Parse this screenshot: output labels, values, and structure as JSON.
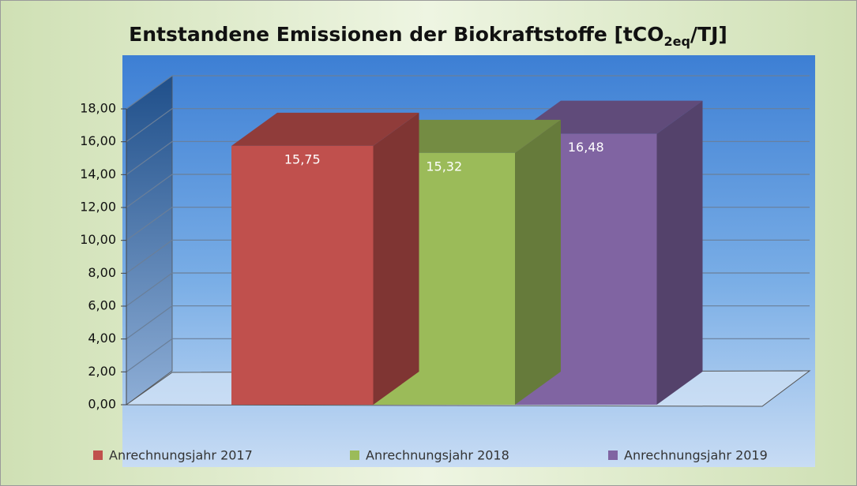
{
  "chart_data": {
    "type": "bar3d",
    "title": {
      "text": "Entstandene Emissionen der Biokraftstoffe [tCO",
      "sub": "2eq",
      "tail": "/TJ]"
    },
    "series": [
      {
        "name": "Anrechnungsjahr 2017",
        "color": "#c0504d",
        "values": [
          15.75
        ],
        "value_labels": [
          "15,75"
        ]
      },
      {
        "name": "Anrechnungsjahr 2018",
        "color": "#9bbb59",
        "values": [
          15.32
        ],
        "value_labels": [
          "15,32"
        ]
      },
      {
        "name": "Anrechnungsjahr 2019",
        "color": "#8064a2",
        "values": [
          16.48
        ],
        "value_labels": [
          "16,48"
        ]
      }
    ],
    "ylim": [
      0,
      18
    ],
    "yticks": [
      {
        "value": 0,
        "label": "0,00"
      },
      {
        "value": 2,
        "label": "2,00"
      },
      {
        "value": 4,
        "label": "4,00"
      },
      {
        "value": 6,
        "label": "6,00"
      },
      {
        "value": 8,
        "label": "8,00"
      },
      {
        "value": 10,
        "label": "10,00"
      },
      {
        "value": 12,
        "label": "12,00"
      },
      {
        "value": 14,
        "label": "14,00"
      },
      {
        "value": 16,
        "label": "16,00"
      },
      {
        "value": 18,
        "label": "18,00"
      }
    ],
    "grid": true,
    "legend": "bottom"
  }
}
